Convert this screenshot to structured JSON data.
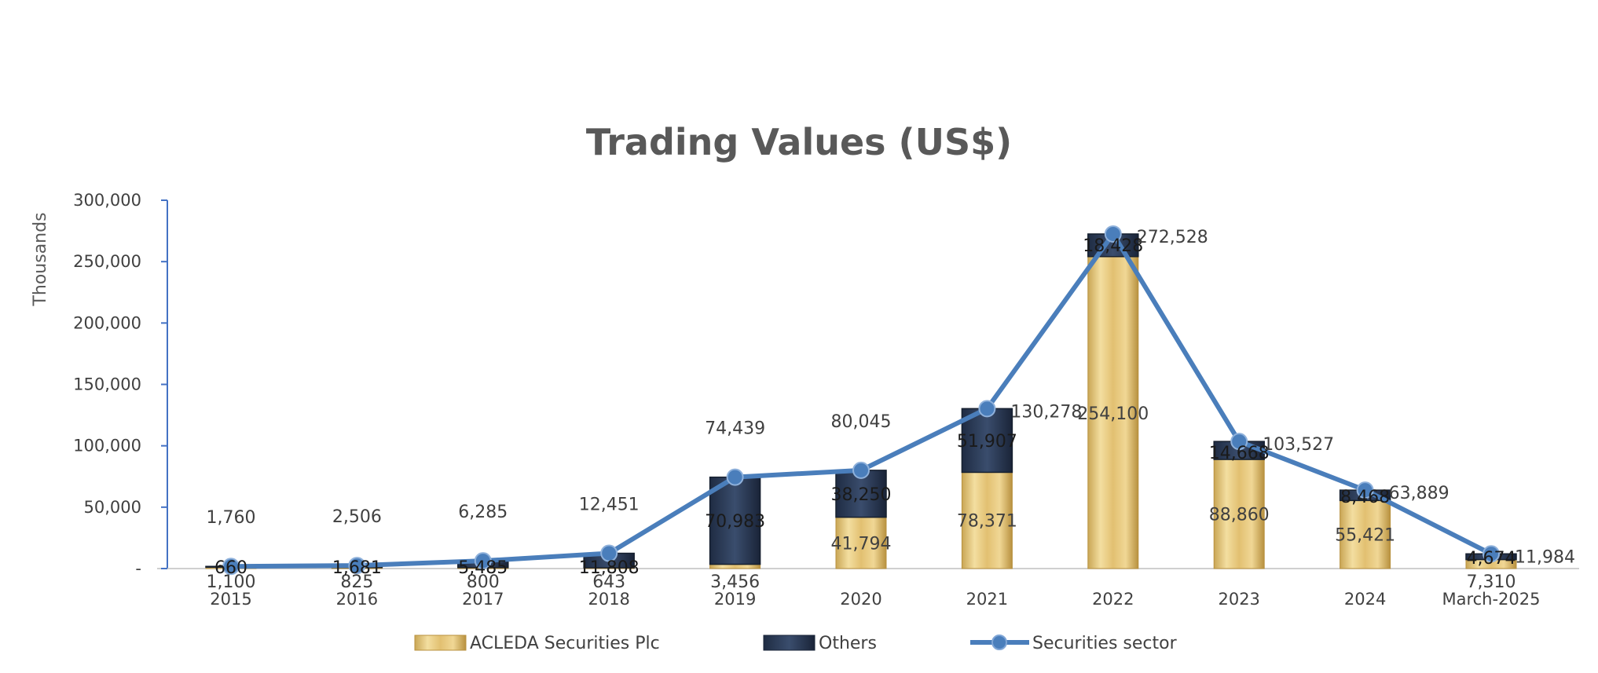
{
  "chart_data": {
    "type": "bar",
    "title": "Trading Values (US$)",
    "ylabel": "Thousands",
    "ylim": [
      0,
      300000
    ],
    "yticks": [
      0,
      50000,
      100000,
      150000,
      200000,
      250000,
      300000
    ],
    "ytick_labels": [
      "-",
      "50,000",
      "100,000",
      "150,000",
      "200,000",
      "250,000",
      "300,000"
    ],
    "categories": [
      "2015",
      "2016",
      "2017",
      "2018",
      "2019",
      "2020",
      "2021",
      "2022",
      "2023",
      "2024",
      "March-2025"
    ],
    "series": [
      {
        "name": "ACLEDA Securities Plc",
        "kind": "stacked-bar",
        "color": "#e6c878",
        "values": [
          1100,
          825,
          800,
          643,
          3456,
          41794,
          78371,
          254100,
          88860,
          55421,
          7310
        ],
        "labels": [
          "1,100",
          "825",
          "800",
          "643",
          "3,456",
          "41,794",
          "78,371",
          "254,100",
          "88,860",
          "55,421",
          "7,310"
        ]
      },
      {
        "name": "Others",
        "kind": "stacked-bar",
        "color": "#2e3f5c",
        "values": [
          660,
          1681,
          5485,
          11808,
          70983,
          38250,
          51907,
          18428,
          14668,
          8468,
          4674
        ],
        "labels": [
          "660",
          "1,681",
          "5,485",
          "11,808",
          "70,983",
          "38,250",
          "51,907",
          "18,428",
          "14,668",
          "8,468",
          "4,674"
        ]
      },
      {
        "name": "Securities sector",
        "kind": "line",
        "color": "#4a7ebb",
        "values": [
          1760,
          2506,
          6285,
          12451,
          74439,
          80045,
          130278,
          272528,
          103527,
          63889,
          11984
        ],
        "labels": [
          "1,760",
          "2,506",
          "6,285",
          "12,451",
          "74,439",
          "80,045",
          "130,278",
          "272,528",
          "103,527",
          "63,889",
          "11,984"
        ]
      }
    ],
    "legend": "bottom",
    "grid": false
  }
}
